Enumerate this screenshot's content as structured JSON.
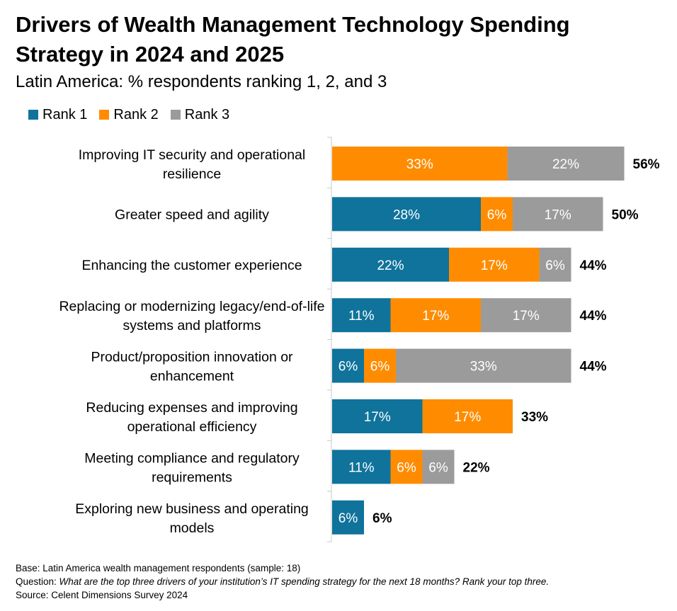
{
  "header": {
    "title": "Drivers of Wealth Management Technology Spending Strategy in 2024 and 2025",
    "subtitle": "Latin America: % respondents  ranking 1, 2, and 3"
  },
  "colors": {
    "rank1": "#0F739B",
    "rank2": "#FF8C00",
    "rank3": "#9B9B9B"
  },
  "chart_data": {
    "type": "bar",
    "orientation": "horizontal",
    "stacked": true,
    "categories": [
      [
        "Improving IT security and operational",
        "resilience"
      ],
      [
        "Greater speed and agility"
      ],
      [
        "Enhancing the customer experience"
      ],
      [
        "Replacing or modernizing legacy/end-of-life",
        "systems and platforms"
      ],
      [
        "Product/proposition innovation or",
        "enhancement"
      ],
      [
        "Reducing expenses and improving",
        "operational efficiency"
      ],
      [
        "Meeting compliance and regulatory",
        "requirements"
      ],
      [
        "Exploring new business and operating",
        "models"
      ]
    ],
    "series": [
      {
        "name": "Rank 1",
        "values": [
          0,
          28,
          22,
          11,
          6,
          17,
          11,
          6
        ]
      },
      {
        "name": "Rank 2",
        "values": [
          33,
          6,
          17,
          17,
          6,
          17,
          6,
          0
        ]
      },
      {
        "name": "Rank 3",
        "values": [
          22,
          17,
          6,
          17,
          33,
          0,
          6,
          0
        ]
      }
    ],
    "totals": [
      56,
      50,
      44,
      44,
      44,
      33,
      22,
      6
    ],
    "value_suffix": "%",
    "legend_position": "top-left",
    "grid": false
  },
  "footer": {
    "base": "Base: Latin America wealth management respondents (sample: 18)",
    "question_label": "Question: ",
    "question_text": "What are the top three drivers of your institution’s IT spending strategy for the next 18 months? Rank your top three.",
    "source": "Source: Celent Dimensions Survey 2024"
  }
}
